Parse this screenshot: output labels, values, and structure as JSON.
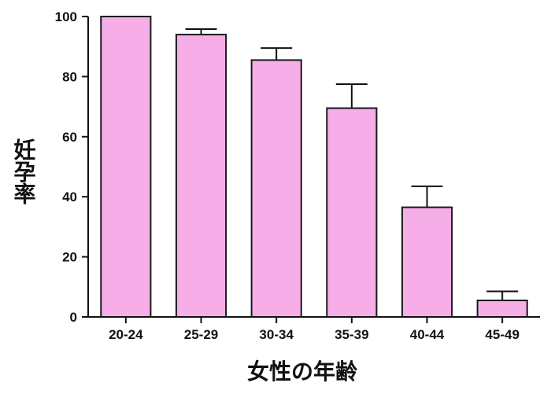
{
  "chart_data": {
    "type": "bar",
    "title": "",
    "xlabel": "女性の年齢",
    "ylabel": "妊孕率",
    "categories": [
      "20-24",
      "25-29",
      "30-34",
      "35-39",
      "40-44",
      "45-49"
    ],
    "values": [
      100,
      94,
      85.5,
      69.5,
      36.5,
      5.5
    ],
    "error_upper": [
      0,
      1.8,
      4,
      8,
      7,
      3
    ],
    "ylim": [
      0,
      100
    ],
    "yticks": [
      0,
      20,
      40,
      60,
      80,
      100
    ],
    "grid": false,
    "legend": "none",
    "colors": {
      "bar_fill": "#f6aee9",
      "bar_stroke": "#1a1a1a",
      "axis": "#111111"
    }
  }
}
